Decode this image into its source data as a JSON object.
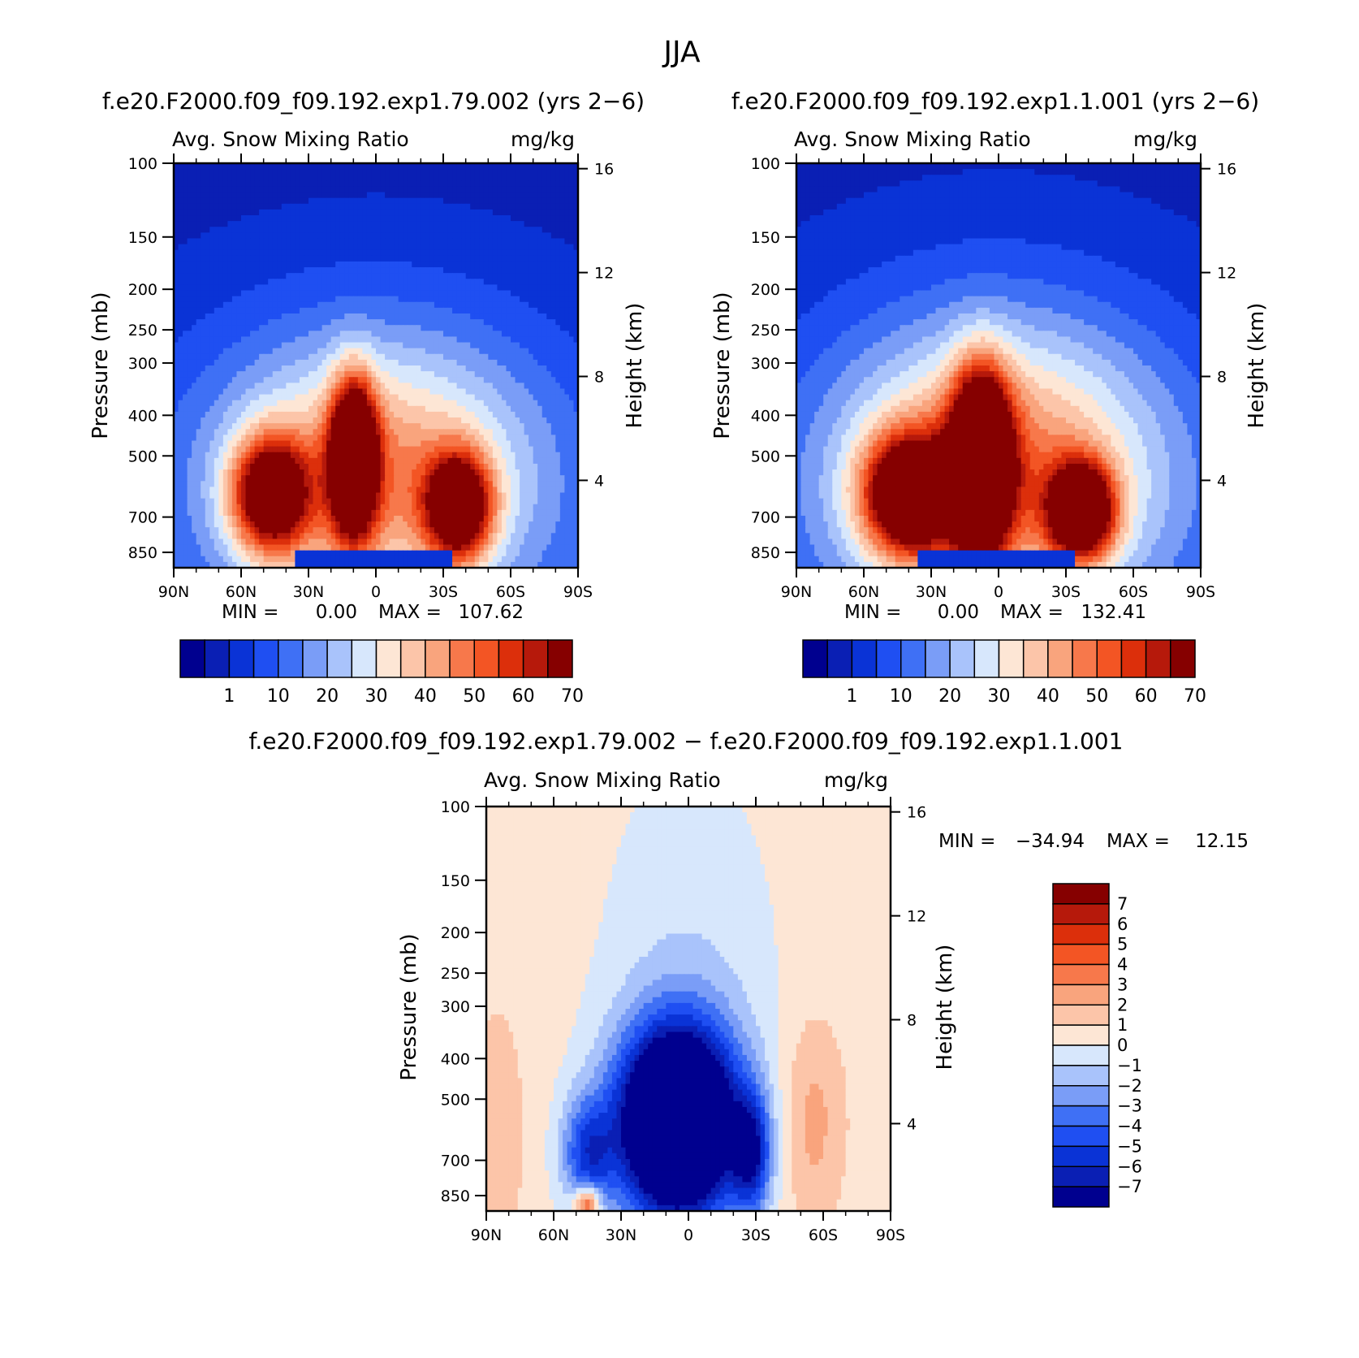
{
  "figure_title": "JJA",
  "chart_data": [
    {
      "type": "heatmap",
      "id": "panel1",
      "title": "f.e20.F2000.f09_f09.192.exp1.79.002 (yrs 2−6)",
      "subtitle_left": "Avg. Snow Mixing Ratio",
      "subtitle_right": "mg/kg",
      "ylabel": "Pressure (mb)",
      "ylabel2": "Height (km)",
      "xlim": [
        -90,
        90
      ],
      "ylim": [
        100,
        925
      ],
      "x_ticks": [
        {
          "v": -90,
          "label": "90N"
        },
        {
          "v": -60,
          "label": "60N"
        },
        {
          "v": -30,
          "label": "30N"
        },
        {
          "v": 0,
          "label": "0"
        },
        {
          "v": 30,
          "label": "30S"
        },
        {
          "v": 60,
          "label": "60S"
        },
        {
          "v": 90,
          "label": "90S"
        }
      ],
      "p_ticks": [
        100,
        150,
        200,
        250,
        300,
        400,
        500,
        700,
        850
      ],
      "z_ticks": [
        16,
        12,
        8,
        4
      ],
      "stats": {
        "min_label": "MIN =",
        "min": "0.00",
        "max_label": "MAX =",
        "max": "107.62"
      },
      "colorbar_labels": [
        "1",
        "10",
        "20",
        "30",
        "40",
        "50",
        "60",
        "70"
      ],
      "levels": [
        0.1,
        1,
        5,
        10,
        15,
        20,
        25,
        30,
        35,
        40,
        45,
        50,
        55,
        60,
        65,
        70
      ]
    },
    {
      "type": "heatmap",
      "id": "panel2",
      "title": "f.e20.F2000.f09_f09.192.exp1.1.001 (yrs 2−6)",
      "subtitle_left": "Avg. Snow Mixing Ratio",
      "subtitle_right": "mg/kg",
      "ylabel": "Pressure (mb)",
      "ylabel2": "Height (km)",
      "xlim": [
        -90,
        90
      ],
      "ylim": [
        100,
        925
      ],
      "x_ticks": [
        {
          "v": -90,
          "label": "90N"
        },
        {
          "v": -60,
          "label": "60N"
        },
        {
          "v": -30,
          "label": "30N"
        },
        {
          "v": 0,
          "label": "0"
        },
        {
          "v": 30,
          "label": "30S"
        },
        {
          "v": 60,
          "label": "60S"
        },
        {
          "v": 90,
          "label": "90S"
        }
      ],
      "p_ticks": [
        100,
        150,
        200,
        250,
        300,
        400,
        500,
        700,
        850
      ],
      "z_ticks": [
        16,
        12,
        8,
        4
      ],
      "stats": {
        "min_label": "MIN =",
        "min": "0.00",
        "max_label": "MAX =",
        "max": "132.41"
      },
      "colorbar_labels": [
        "1",
        "10",
        "20",
        "30",
        "40",
        "50",
        "60",
        "70"
      ],
      "levels": [
        0.1,
        1,
        5,
        10,
        15,
        20,
        25,
        30,
        35,
        40,
        45,
        50,
        55,
        60,
        65,
        70
      ]
    },
    {
      "type": "heatmap",
      "id": "panel3",
      "title": "f.e20.F2000.f09_f09.192.exp1.79.002 − f.e20.F2000.f09_f09.192.exp1.1.001",
      "subtitle_left": "Avg. Snow Mixing Ratio",
      "subtitle_right": "mg/kg",
      "ylabel": "Pressure (mb)",
      "ylabel2": "Height (km)",
      "xlim": [
        -90,
        90
      ],
      "ylim": [
        100,
        925
      ],
      "x_ticks": [
        {
          "v": -90,
          "label": "90N"
        },
        {
          "v": -60,
          "label": "60N"
        },
        {
          "v": -30,
          "label": "30N"
        },
        {
          "v": 0,
          "label": "0"
        },
        {
          "v": 30,
          "label": "30S"
        },
        {
          "v": 60,
          "label": "60S"
        },
        {
          "v": 90,
          "label": "90S"
        }
      ],
      "p_ticks": [
        100,
        150,
        200,
        250,
        300,
        400,
        500,
        700,
        850
      ],
      "z_ticks": [
        16,
        12,
        8,
        4
      ],
      "stats": {
        "min_label": "MIN =",
        "min": "−34.94",
        "max_label": "MAX =",
        "max": "12.15"
      },
      "colorbar_labels": [
        "7",
        "6",
        "5",
        "4",
        "3",
        "2",
        "1",
        "0",
        "−1",
        "−2",
        "−3",
        "−4",
        "−5",
        "−6",
        "−7"
      ],
      "levels": [
        -7,
        -6,
        -5,
        -4,
        -3,
        -2,
        -1,
        0,
        1,
        2,
        3,
        4,
        5,
        6,
        7
      ]
    }
  ],
  "colors": {
    "seq": [
      "#00008f",
      "#0a1fb4",
      "#0a33d6",
      "#1f4ff2",
      "#3f70f5",
      "#7a9df7",
      "#a9c3fb",
      "#d7e7fc",
      "#fde6d5",
      "#fcc5a9",
      "#f9a47d",
      "#f7784b",
      "#f35524",
      "#dc2f0b",
      "#b6190b",
      "#860000"
    ],
    "div": [
      "#00008f",
      "#0a1fb4",
      "#0a33d6",
      "#1f4ff2",
      "#3f70f5",
      "#7a9df7",
      "#a9c3fb",
      "#d7e7fc",
      "#fde6d5",
      "#fcc5a9",
      "#f9a47d",
      "#f7784b",
      "#f35524",
      "#dc2f0b",
      "#b6190b",
      "#860000"
    ]
  }
}
